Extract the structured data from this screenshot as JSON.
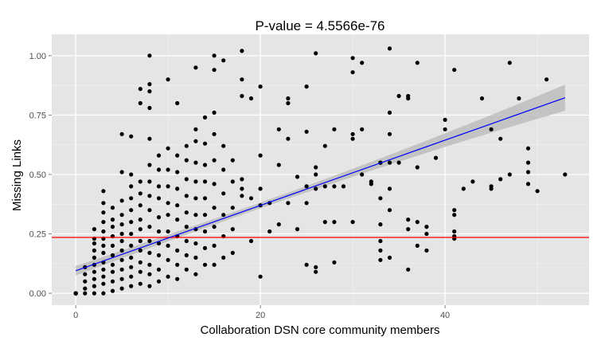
{
  "chart_data": {
    "type": "scatter",
    "title": "P-value = 4.5566e-76",
    "xlabel": "Collaboration DSN core community members",
    "ylabel": "Missing Links",
    "xlim": [
      -2.6,
      55.6
    ],
    "ylim": [
      -0.05,
      1.09
    ],
    "x_ticks": [
      0,
      20,
      40
    ],
    "y_ticks": [
      0,
      0.25,
      0.5,
      0.75,
      1
    ],
    "x_tick_labels": [
      "0",
      "20",
      "40"
    ],
    "y_tick_labels": [
      "0.00",
      "0.25",
      "0.50",
      "0.75",
      "1.00"
    ],
    "grid": true,
    "background": "#e5e5e5",
    "point_color": "#000000",
    "reference_line": {
      "y": 0.235,
      "color": "#ff0000"
    },
    "regression": {
      "x_range": [
        0,
        53
      ],
      "y_start": 0.095,
      "y_end": 0.823,
      "ci_halfwidth_start": 0.02,
      "ci_halfwidth_mid": 0.012,
      "ci_halfwidth_end": 0.055,
      "line_color": "#0000ff",
      "band_color": "#bdbdbd"
    },
    "points": [
      [
        0,
        0
      ],
      [
        0,
        0
      ],
      [
        0,
        0
      ],
      [
        0,
        0
      ],
      [
        0,
        0
      ],
      [
        0,
        0
      ],
      [
        1,
        0.0
      ],
      [
        1,
        0.02
      ],
      [
        1,
        0.05
      ],
      [
        1,
        0.08
      ],
      [
        1,
        0.11
      ],
      [
        2,
        0.0
      ],
      [
        2,
        0.03
      ],
      [
        2,
        0.06
      ],
      [
        2,
        0.09
      ],
      [
        2,
        0.12
      ],
      [
        2,
        0.15
      ],
      [
        2,
        0.18
      ],
      [
        2,
        0.21
      ],
      [
        2,
        0.23
      ],
      [
        2,
        0.27
      ],
      [
        3,
        0.0
      ],
      [
        3,
        0.04
      ],
      [
        3,
        0.07
      ],
      [
        3,
        0.1
      ],
      [
        3,
        0.13
      ],
      [
        3,
        0.17
      ],
      [
        3,
        0.2
      ],
      [
        3,
        0.23
      ],
      [
        3,
        0.26
      ],
      [
        3,
        0.3
      ],
      [
        3,
        0.34
      ],
      [
        3,
        0.38
      ],
      [
        3,
        0.43
      ],
      [
        4,
        0.01
      ],
      [
        4,
        0.05
      ],
      [
        4,
        0.09
      ],
      [
        4,
        0.12
      ],
      [
        4,
        0.16
      ],
      [
        4,
        0.2
      ],
      [
        4,
        0.24
      ],
      [
        4,
        0.28
      ],
      [
        4,
        0.31
      ],
      [
        4,
        0.36
      ],
      [
        5,
        0.02
      ],
      [
        5,
        0.06
      ],
      [
        5,
        0.1
      ],
      [
        5,
        0.14
      ],
      [
        5,
        0.18
      ],
      [
        5,
        0.22
      ],
      [
        5,
        0.25
      ],
      [
        5,
        0.29
      ],
      [
        5,
        0.33
      ],
      [
        5,
        0.39
      ],
      [
        5,
        0.51
      ],
      [
        5,
        0.67
      ],
      [
        6,
        0.03
      ],
      [
        6,
        0.07
      ],
      [
        6,
        0.11
      ],
      [
        6,
        0.15
      ],
      [
        6,
        0.2
      ],
      [
        6,
        0.25
      ],
      [
        6,
        0.3
      ],
      [
        6,
        0.35
      ],
      [
        6,
        0.4
      ],
      [
        6,
        0.45
      ],
      [
        6,
        0.5
      ],
      [
        6,
        0.66
      ],
      [
        7,
        0.04
      ],
      [
        7,
        0.09
      ],
      [
        7,
        0.13
      ],
      [
        7,
        0.18
      ],
      [
        7,
        0.22
      ],
      [
        7,
        0.27
      ],
      [
        7,
        0.31
      ],
      [
        7,
        0.37
      ],
      [
        7,
        0.42
      ],
      [
        7,
        0.47
      ],
      [
        7,
        0.8
      ],
      [
        7,
        0.86
      ],
      [
        8,
        0.03
      ],
      [
        8,
        0.08
      ],
      [
        8,
        0.12
      ],
      [
        8,
        0.17
      ],
      [
        8,
        0.22
      ],
      [
        8,
        0.28
      ],
      [
        8,
        0.35
      ],
      [
        8,
        0.41
      ],
      [
        8,
        0.47
      ],
      [
        8,
        0.54
      ],
      [
        8,
        0.65
      ],
      [
        8,
        0.78
      ],
      [
        8,
        0.85
      ],
      [
        8,
        0.88
      ],
      [
        8,
        1.0
      ],
      [
        9,
        0.05
      ],
      [
        9,
        0.1
      ],
      [
        9,
        0.16
      ],
      [
        9,
        0.21
      ],
      [
        9,
        0.26
      ],
      [
        9,
        0.32
      ],
      [
        9,
        0.4
      ],
      [
        9,
        0.45
      ],
      [
        9,
        0.52
      ],
      [
        9,
        0.58
      ],
      [
        10,
        0.07
      ],
      [
        10,
        0.14
      ],
      [
        10,
        0.2
      ],
      [
        10,
        0.26
      ],
      [
        10,
        0.33
      ],
      [
        10,
        0.38
      ],
      [
        10,
        0.45
      ],
      [
        10,
        0.52
      ],
      [
        10,
        0.61
      ],
      [
        10,
        0.9
      ],
      [
        11,
        0.06
      ],
      [
        11,
        0.12
      ],
      [
        11,
        0.18
      ],
      [
        11,
        0.24
      ],
      [
        11,
        0.31
      ],
      [
        11,
        0.37
      ],
      [
        11,
        0.44
      ],
      [
        11,
        0.51
      ],
      [
        11,
        0.58
      ],
      [
        11,
        0.8
      ],
      [
        12,
        0.1
      ],
      [
        12,
        0.16
      ],
      [
        12,
        0.22
      ],
      [
        12,
        0.28
      ],
      [
        12,
        0.34
      ],
      [
        12,
        0.41
      ],
      [
        12,
        0.48
      ],
      [
        12,
        0.56
      ],
      [
        12,
        0.62
      ],
      [
        13,
        0.08
      ],
      [
        13,
        0.15
      ],
      [
        13,
        0.21
      ],
      [
        13,
        0.27
      ],
      [
        13,
        0.33
      ],
      [
        13,
        0.4
      ],
      [
        13,
        0.47
      ],
      [
        13,
        0.55
      ],
      [
        13,
        0.64
      ],
      [
        13,
        0.69
      ],
      [
        13,
        0.95
      ],
      [
        14,
        0.12
      ],
      [
        14,
        0.19
      ],
      [
        14,
        0.26
      ],
      [
        14,
        0.33
      ],
      [
        14,
        0.4
      ],
      [
        14,
        0.47
      ],
      [
        14,
        0.54
      ],
      [
        14,
        0.63
      ],
      [
        14,
        0.74
      ],
      [
        15,
        0.12
      ],
      [
        15,
        0.2
      ],
      [
        15,
        0.28
      ],
      [
        15,
        0.36
      ],
      [
        15,
        0.46
      ],
      [
        15,
        0.56
      ],
      [
        15,
        0.67
      ],
      [
        15,
        0.76
      ],
      [
        15,
        0.94
      ],
      [
        15,
        1.0
      ],
      [
        16,
        0.15
      ],
      [
        16,
        0.24
      ],
      [
        16,
        0.33
      ],
      [
        16,
        0.42
      ],
      [
        16,
        0.52
      ],
      [
        16,
        0.62
      ],
      [
        16,
        0.98
      ],
      [
        17,
        0.17
      ],
      [
        17,
        0.27
      ],
      [
        17,
        0.36
      ],
      [
        17,
        0.47
      ],
      [
        17,
        0.56
      ],
      [
        18,
        0.41
      ],
      [
        18,
        0.44
      ],
      [
        18,
        0.48
      ],
      [
        18,
        0.83
      ],
      [
        18,
        0.9
      ],
      [
        18,
        1.02
      ],
      [
        19,
        0.22
      ],
      [
        19,
        0.4
      ],
      [
        19,
        0.82
      ],
      [
        20,
        0.07
      ],
      [
        20,
        0.37
      ],
      [
        20,
        0.44
      ],
      [
        20,
        0.58
      ],
      [
        20,
        0.87
      ],
      [
        21,
        0.26
      ],
      [
        21,
        0.38
      ],
      [
        22,
        0.29
      ],
      [
        22,
        0.54
      ],
      [
        22,
        0.69
      ],
      [
        23,
        0.38
      ],
      [
        23,
        0.65
      ],
      [
        23,
        0.8
      ],
      [
        23,
        0.82
      ],
      [
        24,
        0.27
      ],
      [
        24,
        0.49
      ],
      [
        25,
        0.12
      ],
      [
        25,
        0.38
      ],
      [
        25,
        0.45
      ],
      [
        25,
        0.68
      ],
      [
        25,
        0.87
      ],
      [
        26,
        0.09
      ],
      [
        26,
        0.11
      ],
      [
        26,
        0.44
      ],
      [
        26,
        0.5
      ],
      [
        26,
        0.53
      ],
      [
        26,
        1.01
      ],
      [
        27,
        0.3
      ],
      [
        27,
        0.45
      ],
      [
        27,
        0.62
      ],
      [
        28,
        0.13
      ],
      [
        28,
        0.3
      ],
      [
        28,
        0.45
      ],
      [
        28,
        0.69
      ],
      [
        29,
        0.45
      ],
      [
        30,
        0.3
      ],
      [
        30,
        0.65
      ],
      [
        30,
        0.67
      ],
      [
        30,
        0.93
      ],
      [
        30,
        0.99
      ],
      [
        31,
        0.5
      ],
      [
        31,
        0.69
      ],
      [
        31,
        0.97
      ],
      [
        32,
        0.46
      ],
      [
        32,
        0.47
      ],
      [
        33,
        0.14
      ],
      [
        33,
        0.18
      ],
      [
        33,
        0.22
      ],
      [
        33,
        0.29
      ],
      [
        33,
        0.4
      ],
      [
        33,
        0.55
      ],
      [
        33,
        0.55
      ],
      [
        34,
        0.15
      ],
      [
        34,
        0.35
      ],
      [
        34,
        0.44
      ],
      [
        34,
        0.55
      ],
      [
        34,
        0.67
      ],
      [
        34,
        0.76
      ],
      [
        34,
        1.03
      ],
      [
        35,
        0.55
      ],
      [
        35,
        0.83
      ],
      [
        36,
        0.1
      ],
      [
        36,
        0.27
      ],
      [
        36,
        0.31
      ],
      [
        36,
        0.82
      ],
      [
        36,
        0.83
      ],
      [
        37,
        0.2
      ],
      [
        37,
        0.3
      ],
      [
        37,
        0.53
      ],
      [
        37,
        0.97
      ],
      [
        38,
        0.18
      ],
      [
        38,
        0.25
      ],
      [
        38,
        0.28
      ],
      [
        39,
        0.57
      ],
      [
        40,
        0.69
      ],
      [
        40,
        0.73
      ],
      [
        41,
        0.23
      ],
      [
        41,
        0.24
      ],
      [
        41,
        0.26
      ],
      [
        41,
        0.33
      ],
      [
        41,
        0.35
      ],
      [
        41,
        0.94
      ],
      [
        42,
        0.44
      ],
      [
        43,
        0.47
      ],
      [
        44,
        0.82
      ],
      [
        45,
        0.44
      ],
      [
        45,
        0.45
      ],
      [
        45,
        0.69
      ],
      [
        46,
        0.48
      ],
      [
        46,
        0.65
      ],
      [
        47,
        0.5
      ],
      [
        47,
        0.97
      ],
      [
        48,
        0.82
      ],
      [
        49,
        0.46
      ],
      [
        49,
        0.51
      ],
      [
        49,
        0.55
      ],
      [
        49,
        0.61
      ],
      [
        50,
        0.43
      ],
      [
        51,
        0.9
      ],
      [
        53,
        0.5
      ]
    ]
  }
}
